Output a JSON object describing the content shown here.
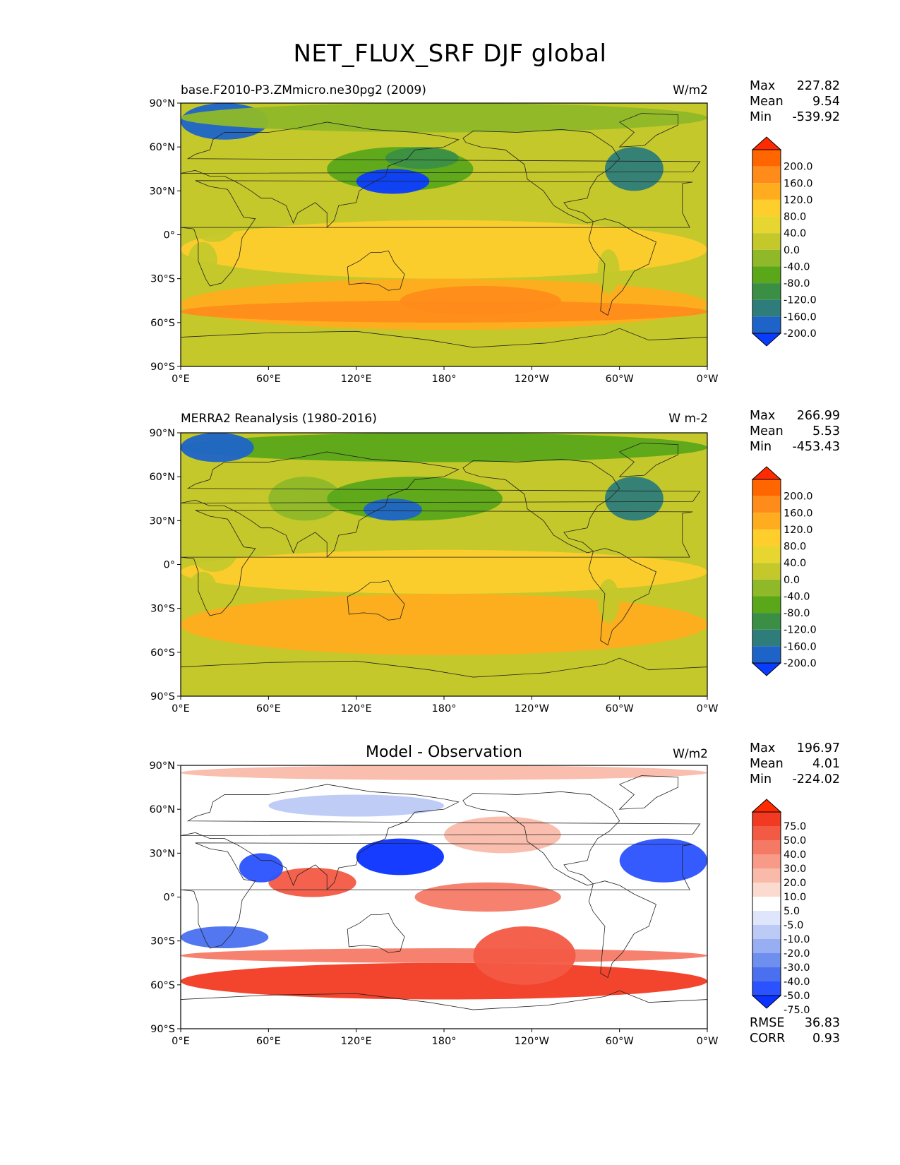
{
  "figure": {
    "title": "NET_FLUX_SRF DJF global"
  },
  "axes": {
    "lat_ticks": [
      "90°N",
      "60°N",
      "30°N",
      "0°",
      "30°S",
      "60°S",
      "90°S"
    ],
    "lon_ticks": [
      "0°E",
      "60°E",
      "120°E",
      "180°",
      "120°W",
      "60°W",
      "0°W"
    ]
  },
  "panels": [
    {
      "id": "model",
      "title_left": "base.F2010-P3.ZMmicro.ne30pg2 (2009)",
      "title_center": "",
      "units": "W/m2",
      "stats": [
        {
          "label": "Max",
          "value": "227.82"
        },
        {
          "label": "Mean",
          "value": "9.54"
        },
        {
          "label": "Min",
          "value": "-539.92"
        }
      ],
      "colorbar": {
        "labels": [
          "200.0",
          "160.0",
          "120.0",
          "80.0",
          "40.0",
          "0.0",
          "-40.0",
          "-80.0",
          "-120.0",
          "-160.0",
          "-200.0"
        ],
        "colors": [
          "#ff2a00",
          "#ff6600",
          "#ff8c1a",
          "#ffad1f",
          "#fdce2c",
          "#e7d630",
          "#c5c82a",
          "#8fb928",
          "#5aa81a",
          "#3a8f45",
          "#2e7d7a",
          "#1e64c8",
          "#0a3cff"
        ]
      }
    },
    {
      "id": "obs",
      "title_left": "MERRA2 Reanalysis (1980-2016)",
      "title_center": "",
      "units": "W m-2",
      "stats": [
        {
          "label": "Max",
          "value": "266.99"
        },
        {
          "label": "Mean",
          "value": "5.53"
        },
        {
          "label": "Min",
          "value": "-453.43"
        }
      ],
      "colorbar": {
        "labels": [
          "200.0",
          "160.0",
          "120.0",
          "80.0",
          "40.0",
          "0.0",
          "-40.0",
          "-80.0",
          "-120.0",
          "-160.0",
          "-200.0"
        ],
        "colors": [
          "#ff2a00",
          "#ff6600",
          "#ff8c1a",
          "#ffad1f",
          "#fdce2c",
          "#e7d630",
          "#c5c82a",
          "#8fb928",
          "#5aa81a",
          "#3a8f45",
          "#2e7d7a",
          "#1e64c8",
          "#0a3cff"
        ]
      }
    },
    {
      "id": "diff",
      "title_left": "",
      "title_center": "Model - Observation",
      "units": "W/m2",
      "stats": [
        {
          "label": "Max",
          "value": "196.97"
        },
        {
          "label": "Mean",
          "value": "4.01"
        },
        {
          "label": "Min",
          "value": "-224.02"
        }
      ],
      "extra_stats": [
        {
          "label": "RMSE",
          "value": "36.83"
        },
        {
          "label": "CORR",
          "value": "0.93"
        }
      ],
      "colorbar": {
        "labels": [
          "75.0",
          "50.0",
          "40.0",
          "30.0",
          "20.0",
          "10.0",
          "5.0",
          "-5.0",
          "-10.0",
          "-20.0",
          "-30.0",
          "-40.0",
          "-50.0",
          "-75.0"
        ],
        "colors": [
          "#ff2a00",
          "#f23a22",
          "#f35a44",
          "#f57a66",
          "#f79a88",
          "#f9baaa",
          "#fbdad0",
          "#ffffff",
          "#dfe6fb",
          "#bccaf6",
          "#97aef2",
          "#6f8fef",
          "#4a70ef",
          "#2a52ff",
          "#0a33ff"
        ]
      }
    }
  ],
  "chart_data": [
    {
      "type": "heatmap",
      "title": "base.F2010-P3.ZMmicro.ne30pg2 (2009)",
      "units": "W/m2",
      "x": {
        "label": "",
        "range": [
          0,
          360
        ],
        "ticks": [
          "0°E",
          "60°E",
          "120°E",
          "180°",
          "120°W",
          "60°W",
          "0°W"
        ]
      },
      "y": {
        "label": "",
        "range": [
          -90,
          90
        ],
        "ticks": [
          "90°N",
          "60°N",
          "30°N",
          "0°",
          "30°S",
          "60°S",
          "90°S"
        ]
      },
      "levels": [
        -200,
        -160,
        -120,
        -80,
        -40,
        0,
        40,
        80,
        120,
        160,
        200
      ],
      "stats": {
        "max": 227.82,
        "mean": 9.54,
        "min": -539.92
      }
    },
    {
      "type": "heatmap",
      "title": "MERRA2 Reanalysis (1980-2016)",
      "units": "W m-2",
      "x": {
        "label": "",
        "range": [
          0,
          360
        ],
        "ticks": [
          "0°E",
          "60°E",
          "120°E",
          "180°",
          "120°W",
          "60°W",
          "0°W"
        ]
      },
      "y": {
        "label": "",
        "range": [
          -90,
          90
        ],
        "ticks": [
          "90°N",
          "60°N",
          "30°N",
          "0°",
          "30°S",
          "60°S",
          "90°S"
        ]
      },
      "levels": [
        -200,
        -160,
        -120,
        -80,
        -40,
        0,
        40,
        80,
        120,
        160,
        200
      ],
      "stats": {
        "max": 266.99,
        "mean": 5.53,
        "min": -453.43
      }
    },
    {
      "type": "heatmap",
      "title": "Model - Observation",
      "units": "W/m2",
      "x": {
        "label": "",
        "range": [
          0,
          360
        ],
        "ticks": [
          "0°E",
          "60°E",
          "120°E",
          "180°",
          "120°W",
          "60°W",
          "0°W"
        ]
      },
      "y": {
        "label": "",
        "range": [
          -90,
          90
        ],
        "ticks": [
          "90°N",
          "60°N",
          "30°N",
          "0°",
          "30°S",
          "60°S",
          "90°S"
        ]
      },
      "levels": [
        -75,
        -50,
        -40,
        -30,
        -20,
        -10,
        -5,
        5,
        10,
        20,
        30,
        40,
        50,
        75
      ],
      "stats": {
        "max": 196.97,
        "mean": 4.01,
        "min": -224.02,
        "rmse": 36.83,
        "corr": 0.93
      }
    }
  ]
}
